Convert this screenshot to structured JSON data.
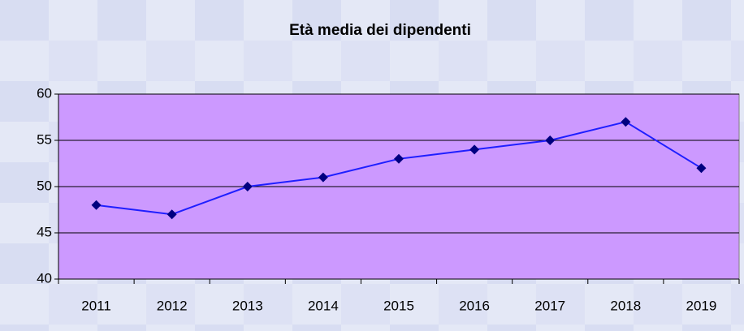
{
  "chart_data": {
    "type": "line",
    "title": "Età media dei dipendenti",
    "categories": [
      "2011",
      "2012",
      "2013",
      "2014",
      "2015",
      "2016",
      "2017",
      "2018",
      "2019"
    ],
    "series": [
      {
        "name": null,
        "color": "#1f1fff",
        "marker_color": "#000080",
        "values": [
          48,
          47,
          50,
          51,
          53,
          54,
          55,
          57,
          52
        ]
      }
    ],
    "ylim": [
      40,
      60
    ],
    "yticks": [
      40,
      45,
      50,
      55,
      60
    ],
    "grid": true,
    "plot_background": "#cc99ff",
    "title_color": "#ff0000"
  }
}
